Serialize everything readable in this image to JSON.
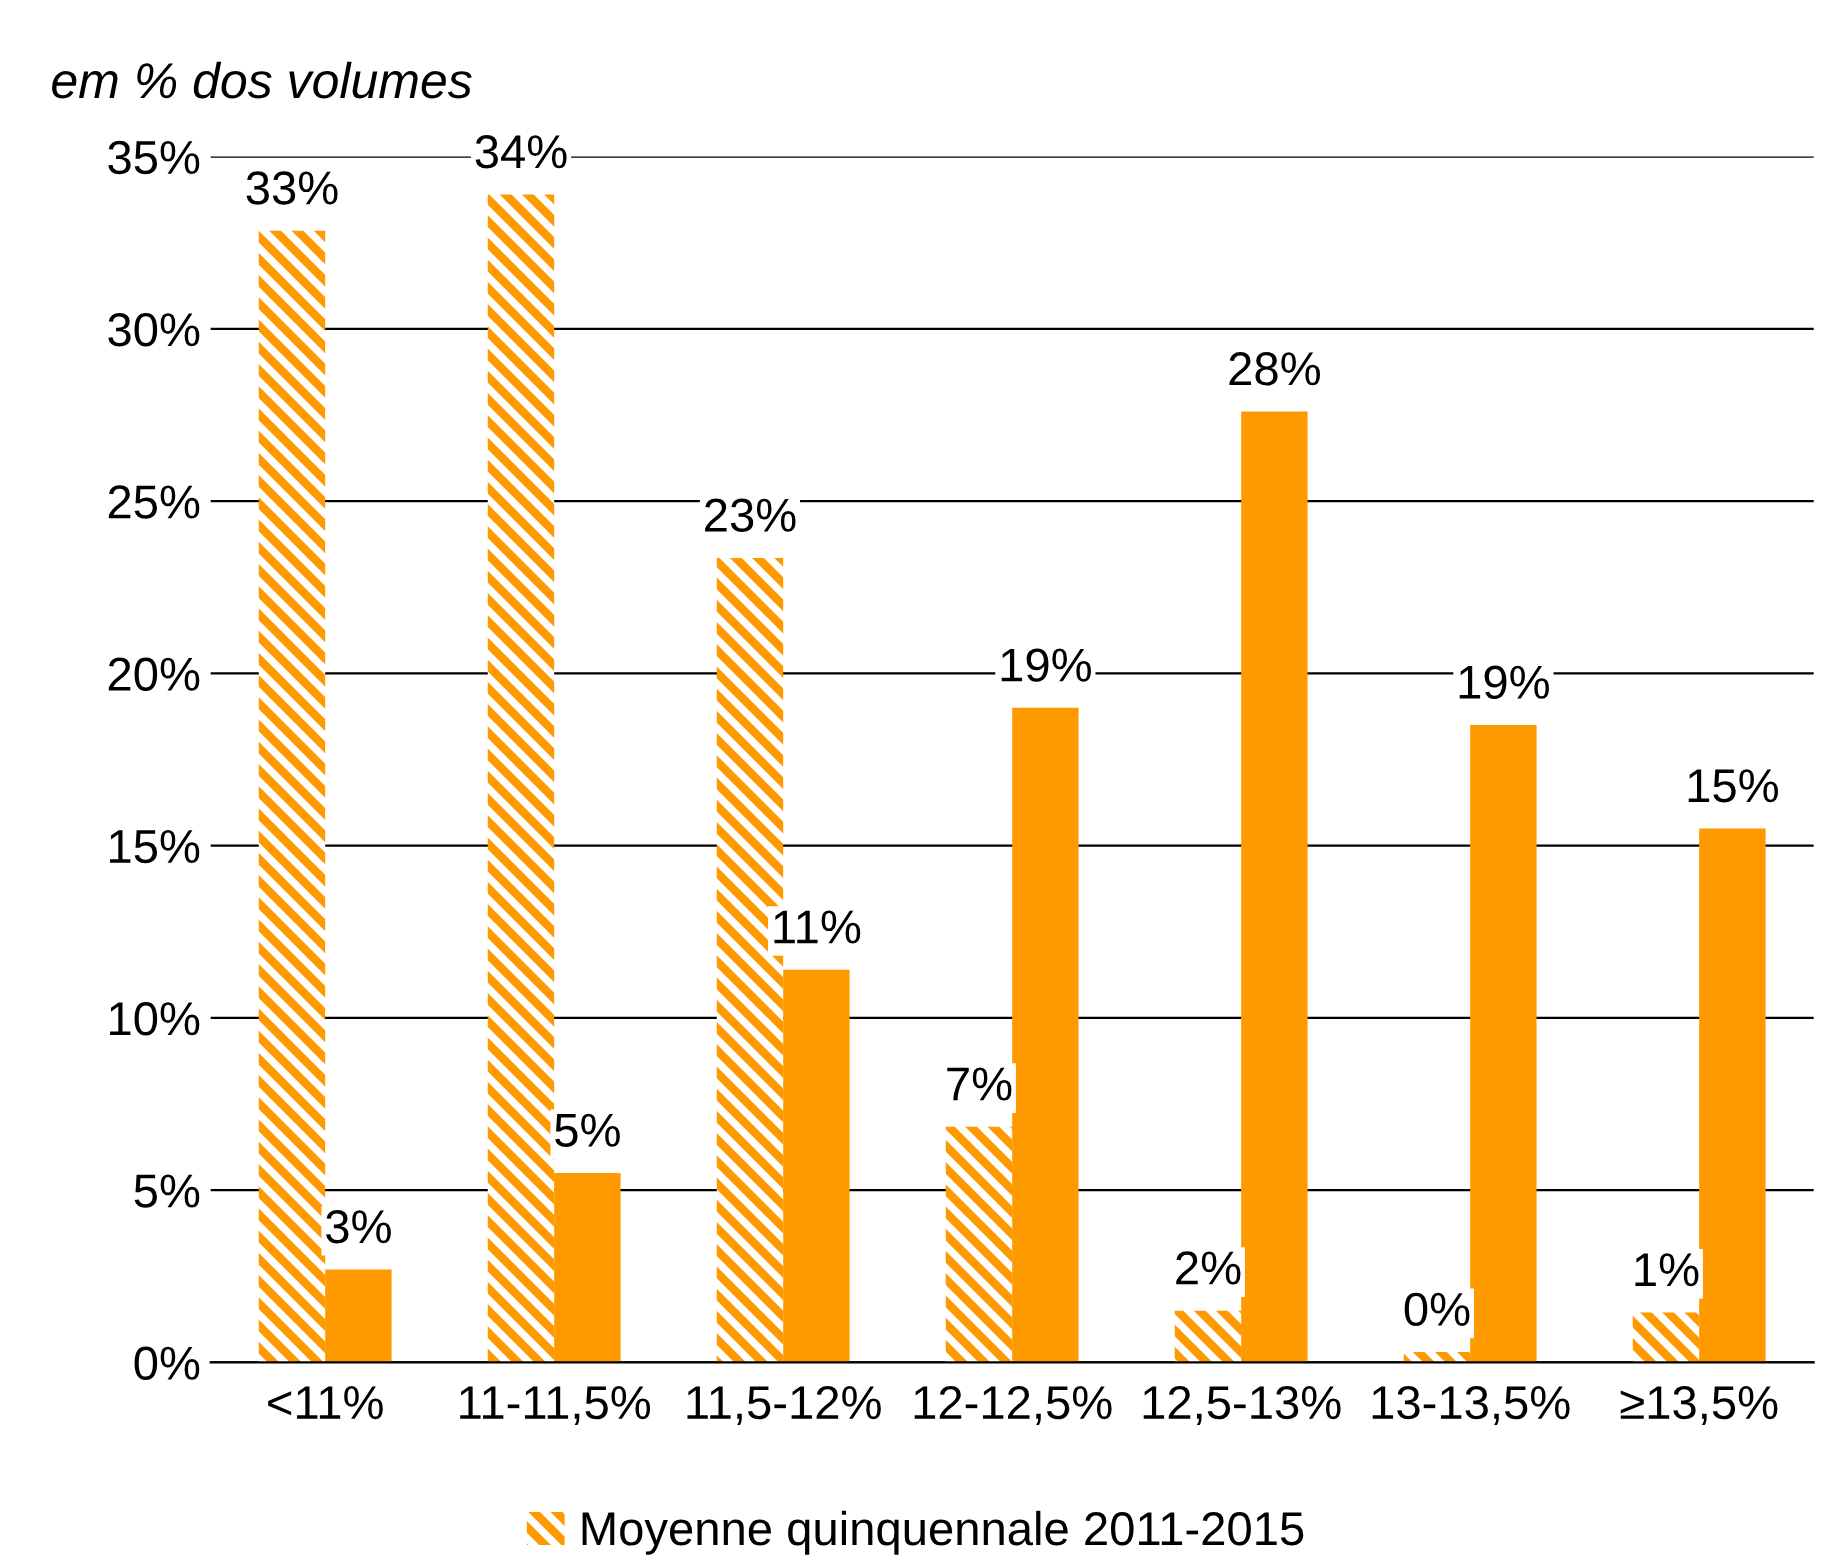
{
  "chart_data": {
    "type": "bar",
    "ylabel": "em % dos volumes",
    "categories": [
      "<11%",
      "11-11,5%",
      "11,5-12%",
      "12-12,5%",
      "12,5-13%",
      "13-13,5%",
      "≥13,5%"
    ],
    "series": [
      {
        "name": "Moyenne quinquennale 2011-2015",
        "color": "#ff9900",
        "values": [
          32.85,
          33.9,
          23.35,
          6.84,
          1.5,
          0.3,
          1.45
        ],
        "value_labels": [
          "33%",
          "34%",
          "23%",
          "7%",
          "2%",
          "0%",
          "1%"
        ]
      },
      {
        "color": "#ff9900",
        "values": [
          2.7,
          5.5,
          11.4,
          19.0,
          27.6,
          18.5,
          15.5
        ],
        "value_labels": [
          "3%",
          "5%",
          "11%",
          "19%",
          "28%",
          "19%",
          "15%"
        ]
      }
    ],
    "ylim": [
      0,
      35
    ],
    "yticks": [
      {
        "value": 0,
        "label": "0%"
      },
      {
        "value": 5,
        "label": "5%"
      },
      {
        "value": 10,
        "label": "10%"
      },
      {
        "value": 15,
        "label": "15%"
      },
      {
        "value": 20,
        "label": "20%"
      },
      {
        "value": 25,
        "label": "25%"
      },
      {
        "value": 30,
        "label": "30%"
      },
      {
        "value": 35,
        "label": "35%"
      }
    ],
    "grid": "y",
    "legend": "bottom"
  }
}
